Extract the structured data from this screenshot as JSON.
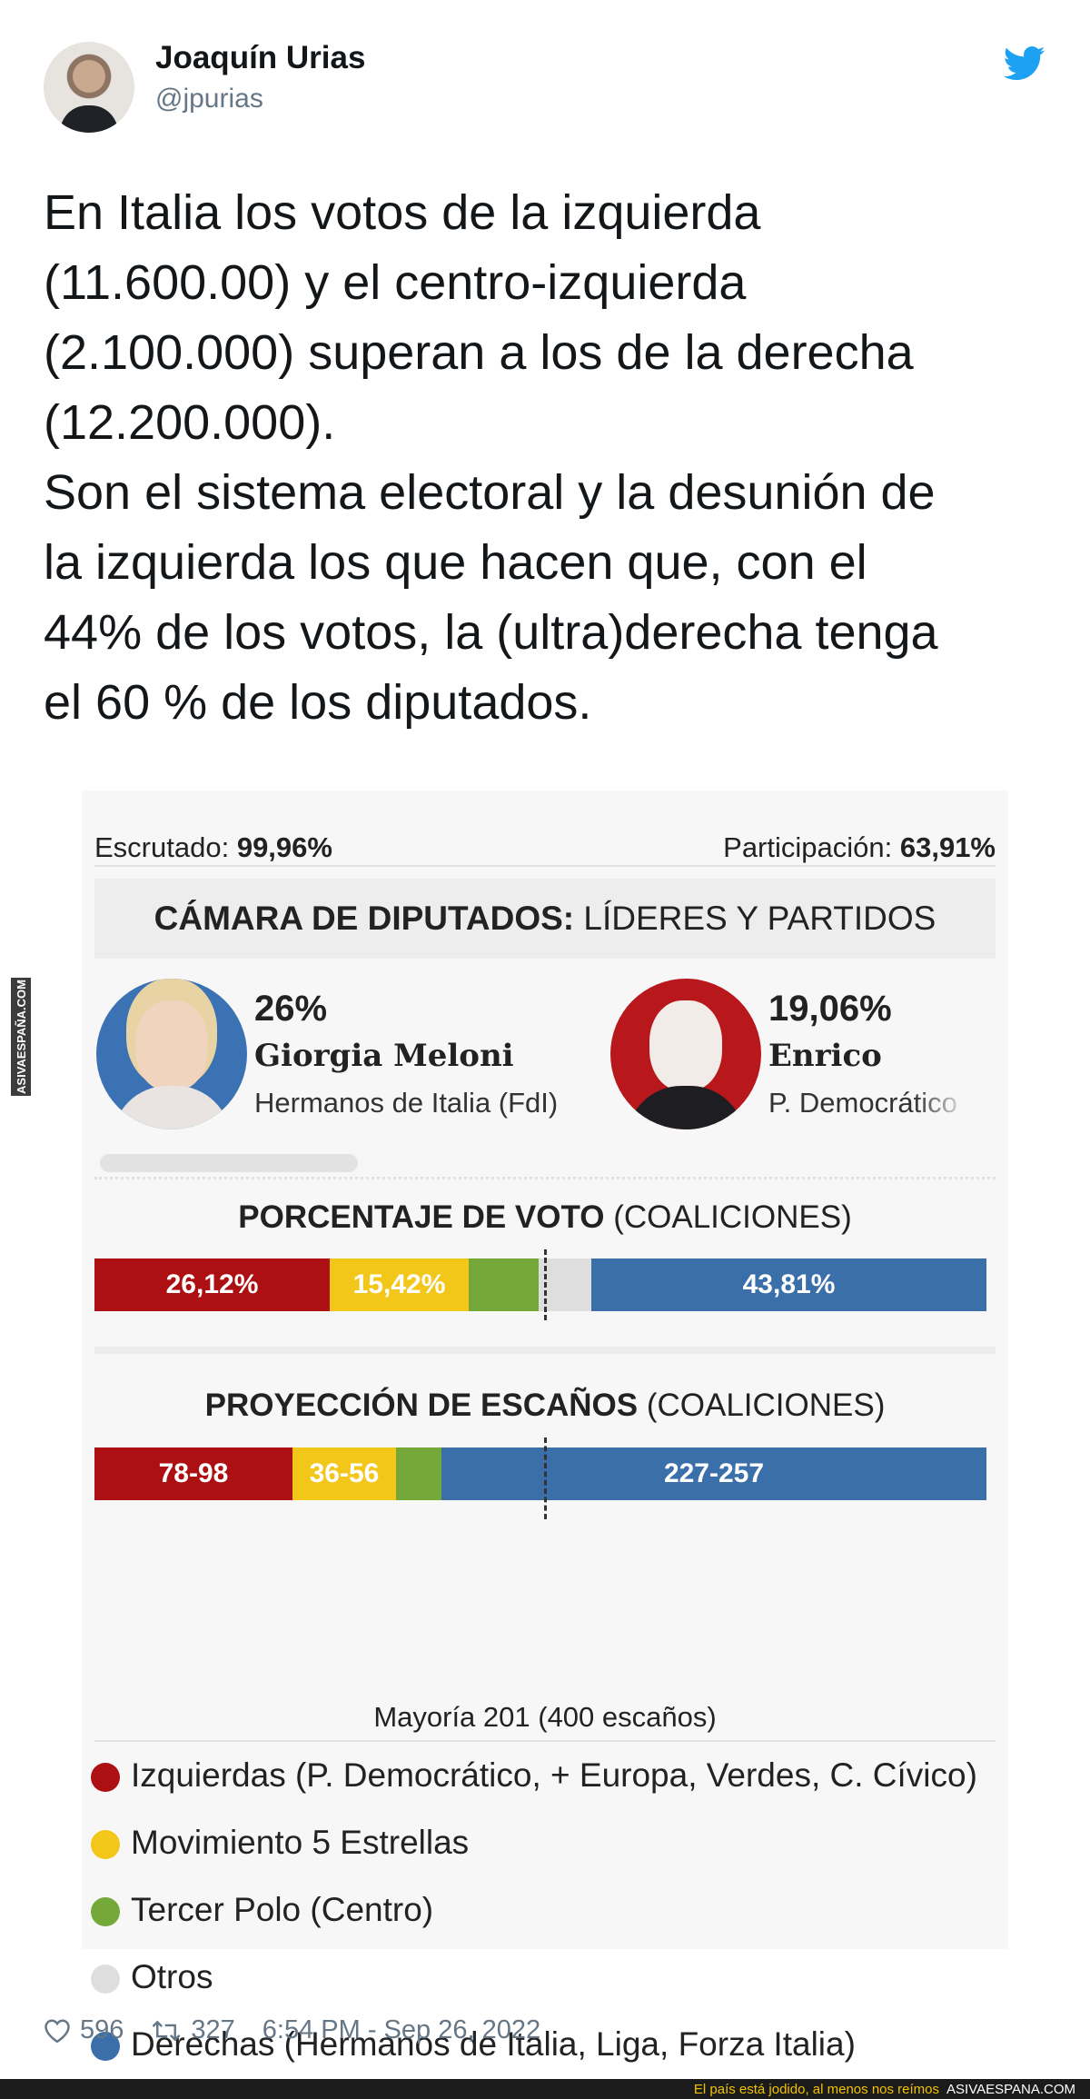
{
  "tweet": {
    "author_name": "Joaquín Urias",
    "handle": "@jpurias",
    "text": "En Italia los votos de la izquierda\n(11.600.00) y el centro-izquierda\n(2.100.000) superan a los de la derecha\n(12.200.000).\nSon el sistema electoral y la desunión de\nla izquierda los que hacen que, con el\n44% de los votos, la (ultra)derecha tenga\nel 60 % de los diputados.",
    "likes": "596",
    "retweets": "327",
    "timestamp": "6:54 PM - Sep 26, 2022"
  },
  "graphic": {
    "scrutiny_label": "Escrutado:",
    "scrutiny_value": "99,96%",
    "turnout_label": "Participación:",
    "turnout_value": "63,91%",
    "chamber_title_strong": "CÁMARA DE DIPUTADOS:",
    "chamber_title_rest": "LÍDERES Y PARTIDOS",
    "leaders": [
      {
        "pct": "26%",
        "name": "Giorgia Meloni",
        "party": "Hermanos de Italia (FdI)"
      },
      {
        "pct": "19,06%",
        "name": "Enrico Letta",
        "party": "P. Democrático"
      }
    ],
    "vote_title_strong": "PORCENTAJE DE VOTO",
    "vote_title_rest": "(COALICIONES)",
    "vote_bar": [
      {
        "label": "26,12%",
        "share": 0.2612,
        "color": "#ac1012"
      },
      {
        "label": "15,42%",
        "share": 0.1542,
        "color": "#f3c719"
      },
      {
        "label": "",
        "share": 0.078,
        "color": "#74a93a"
      },
      {
        "label": "",
        "share": 0.058,
        "color": "#dedede"
      },
      {
        "label": "43,81%",
        "share": 0.4381,
        "color": "#3a6fa9"
      }
    ],
    "seats_title_strong": "PROYECCIÓN DE ESCAÑOS",
    "seats_title_rest": "(COALICIONES)",
    "seats_bar": [
      {
        "label": "78-98",
        "share": 0.22,
        "color": "#ac1012"
      },
      {
        "label": "36-56",
        "share": 0.115,
        "color": "#f3c719"
      },
      {
        "label": "",
        "share": 0.05,
        "color": "#74a93a"
      },
      {
        "label": "227-257",
        "share": 0.605,
        "color": "#3a6fa9"
      }
    ],
    "majority_note": "Mayoría 201 (400 escaños)",
    "legend": [
      {
        "label": "Izquierdas (P. Democrático, + Europa, Verdes, C. Cívico)",
        "color": "#ac1012"
      },
      {
        "label": "Movimiento 5 Estrellas",
        "color": "#f3c719"
      },
      {
        "label": "Tercer Polo (Centro)",
        "color": "#74a93a"
      },
      {
        "label": "Otros",
        "color": "#dedede"
      },
      {
        "label": "Derechas (Hermanos de Italia, Liga, Forza Italia)",
        "color": "#3a6fa9"
      }
    ]
  },
  "site_footer": {
    "tagline": "El país está jodido, al menos nos reímos",
    "site": "ASIVAESPANA.COM"
  },
  "watermark": "ASIVAESPAÑA.COM",
  "icons": {
    "brand": "twitter-bird-icon",
    "like": "heart-icon",
    "retweet": "retweet-icon"
  }
}
